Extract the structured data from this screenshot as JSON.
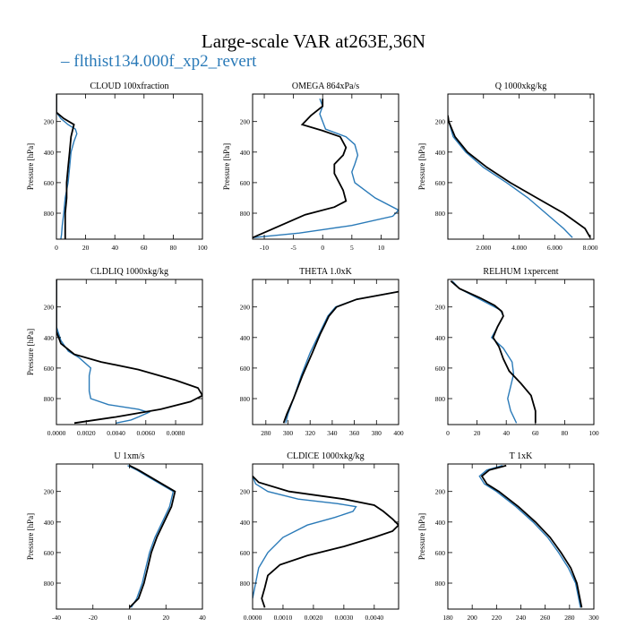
{
  "figure": {
    "title": "Large-scale VAR at263E,36N",
    "legend_label": "flthist134.000f_xp2_revert",
    "legend_color": "#2a7ab8",
    "ref_color": "#000000",
    "ylabel": "Pressure [hPa]"
  },
  "chart_data": [
    {
      "type": "line",
      "title": "CLOUD  100xfraction",
      "ylabel": "Pressure [hPa]",
      "xlim": [
        0,
        100
      ],
      "ylim": [
        970,
        20
      ],
      "xticks": [
        0,
        20,
        40,
        60,
        80,
        100
      ],
      "xticklabels": [
        "0",
        "20",
        "40",
        "60",
        "80",
        "100"
      ],
      "yticks": [
        200,
        400,
        600,
        800
      ],
      "yticklabels": [
        "200",
        "400",
        "600",
        "800"
      ],
      "series": [
        {
          "name": "flthist134.000f_xp2_revert",
          "color": "#2a7ab8",
          "x": [
            0,
            0,
            3,
            8,
            13,
            14,
            12,
            10,
            9,
            8,
            6,
            5,
            4,
            3.5,
            3
          ],
          "y": [
            20,
            140,
            180,
            220,
            250,
            280,
            330,
            400,
            500,
            600,
            700,
            800,
            880,
            940,
            970
          ]
        },
        {
          "name": "",
          "color": "#000000",
          "x": [
            0,
            0,
            5,
            12,
            11,
            10,
            9,
            8,
            7,
            7,
            6,
            6,
            6
          ],
          "y": [
            20,
            140,
            180,
            220,
            260,
            300,
            400,
            500,
            600,
            700,
            800,
            900,
            970
          ]
        }
      ]
    },
    {
      "type": "line",
      "title": "OMEGA  864xPa/s",
      "ylabel": "Pressure [hPa]",
      "xlim": [
        -12,
        13
      ],
      "ylim": [
        970,
        20
      ],
      "xticks": [
        -10,
        -5,
        0,
        5,
        10
      ],
      "xticklabels": [
        "-10",
        "-5",
        "0",
        "5",
        "10"
      ],
      "yticks": [
        200,
        400,
        600,
        800
      ],
      "yticklabels": [
        "200",
        "400",
        "600",
        "800"
      ],
      "series": [
        {
          "name": "flthist134.000f_xp2_revert",
          "color": "#2a7ab8",
          "x": [
            -0.5,
            0,
            -0.5,
            0.5,
            4,
            5.5,
            6,
            5.5,
            5,
            5.5,
            9,
            13,
            12,
            5,
            -4,
            -12
          ],
          "y": [
            50,
            100,
            150,
            250,
            300,
            350,
            420,
            480,
            530,
            600,
            700,
            780,
            820,
            880,
            930,
            960
          ]
        },
        {
          "name": "",
          "color": "#000000",
          "x": [
            0,
            0,
            -2,
            -3.5,
            0,
            3,
            4,
            3.5,
            2,
            2,
            3.5,
            4,
            2,
            -3,
            -9,
            -12
          ],
          "y": [
            50,
            100,
            160,
            220,
            260,
            300,
            370,
            420,
            480,
            540,
            650,
            720,
            760,
            810,
            910,
            960
          ]
        }
      ]
    },
    {
      "type": "line",
      "title": "Q  1000xkg/kg",
      "ylabel": "Pressure [hPa]",
      "xlim": [
        0,
        8.2
      ],
      "ylim": [
        970,
        20
      ],
      "xticks": [
        2,
        4,
        6,
        8
      ],
      "xticklabels": [
        "2.000",
        "4.000",
        "6.000",
        "8.000"
      ],
      "yticks": [
        200,
        400,
        600,
        800
      ],
      "yticklabels": [
        "200",
        "400",
        "600",
        "800"
      ],
      "series": [
        {
          "name": "flthist134.000f_xp2_revert",
          "color": "#2a7ab8",
          "x": [
            0,
            0.05,
            0.3,
            1.0,
            2.0,
            3.3,
            4.5,
            5.5,
            6.5,
            7.0
          ],
          "y": [
            160,
            200,
            300,
            400,
            500,
            600,
            700,
            800,
            900,
            960
          ]
        },
        {
          "name": "",
          "color": "#000000",
          "x": [
            0,
            0.05,
            0.4,
            1.1,
            2.2,
            3.5,
            5.0,
            6.5,
            7.7,
            8.0
          ],
          "y": [
            160,
            200,
            300,
            400,
            500,
            600,
            700,
            800,
            900,
            960
          ]
        }
      ]
    },
    {
      "type": "line",
      "title": "CLDLIQ  1000xkg/kg",
      "ylabel": "Pressure [hPa]",
      "xlim": [
        0,
        0.0098
      ],
      "ylim": [
        970,
        20
      ],
      "xticks": [
        0,
        0.002,
        0.004,
        0.006,
        0.008
      ],
      "xticklabels": [
        "0.0000",
        "0.0020",
        "0.0040",
        "0.0060",
        "0.0080"
      ],
      "yticks": [
        200,
        400,
        600,
        800
      ],
      "yticklabels": [
        "200",
        "400",
        "600",
        "800"
      ],
      "series": [
        {
          "name": "flthist134.000f_xp2_revert",
          "color": "#2a7ab8",
          "x": [
            0,
            0,
            0.0003,
            0.0008,
            0.0015,
            0.0023,
            0.0022,
            0.0022,
            0.0022,
            0.0023,
            0.0035,
            0.0055,
            0.0062,
            0.0055,
            0.005,
            0.004
          ],
          "y": [
            20,
            330,
            420,
            490,
            530,
            600,
            650,
            700,
            750,
            800,
            840,
            870,
            890,
            920,
            940,
            960
          ]
        },
        {
          "name": "",
          "color": "#000000",
          "x": [
            0,
            0,
            0.0003,
            0.0012,
            0.003,
            0.0055,
            0.008,
            0.0095,
            0.0098,
            0.009,
            0.007,
            0.004,
            0.0012
          ],
          "y": [
            20,
            360,
            440,
            510,
            560,
            610,
            680,
            730,
            780,
            820,
            870,
            920,
            960
          ]
        }
      ]
    },
    {
      "type": "line",
      "title": "THETA  1.0xK",
      "ylabel": "",
      "xlim": [
        268,
        400
      ],
      "ylim": [
        970,
        20
      ],
      "xticks": [
        280,
        300,
        320,
        340,
        360,
        380,
        400
      ],
      "xticklabels": [
        "280",
        "300",
        "320",
        "340",
        "360",
        "380",
        "400"
      ],
      "yticks": [
        200,
        400,
        600,
        800
      ],
      "yticklabels": [
        "200",
        "400",
        "600",
        "800"
      ],
      "series": [
        {
          "name": "flthist134.000f_xp2_revert",
          "color": "#2a7ab8",
          "x": [
            298,
            300,
            305,
            312,
            320,
            328,
            332,
            336,
            343,
            362,
            400
          ],
          "y": [
            960,
            900,
            800,
            650,
            500,
            380,
            320,
            260,
            200,
            150,
            100
          ]
        },
        {
          "name": "",
          "color": "#000000",
          "x": [
            296,
            299,
            305,
            313,
            322,
            329,
            333,
            337,
            344,
            362,
            400
          ],
          "y": [
            960,
            900,
            800,
            650,
            500,
            380,
            320,
            260,
            200,
            150,
            100
          ]
        }
      ]
    },
    {
      "type": "line",
      "title": "RELHUM  1xpercent",
      "ylabel": "",
      "xlim": [
        0,
        100
      ],
      "ylim": [
        970,
        20
      ],
      "xticks": [
        0,
        20,
        40,
        60,
        80,
        100
      ],
      "xticklabels": [
        "0",
        "20",
        "40",
        "60",
        "80",
        "100"
      ],
      "yticks": [
        200,
        400,
        600,
        800
      ],
      "yticklabels": [
        "200",
        "400",
        "600",
        "800"
      ],
      "series": [
        {
          "name": "flthist134.000f_xp2_revert",
          "color": "#2a7ab8",
          "x": [
            3,
            8,
            18,
            28,
            36,
            38,
            34,
            30,
            38,
            44,
            45,
            43,
            41,
            43,
            47
          ],
          "y": [
            30,
            80,
            130,
            180,
            220,
            260,
            330,
            400,
            470,
            560,
            640,
            720,
            800,
            880,
            960
          ]
        },
        {
          "name": "",
          "color": "#000000",
          "x": [
            2,
            8,
            22,
            32,
            37,
            38,
            34,
            31,
            35,
            38,
            42,
            50,
            57,
            60,
            60
          ],
          "y": [
            30,
            80,
            140,
            190,
            230,
            260,
            330,
            400,
            460,
            540,
            620,
            700,
            780,
            880,
            960
          ]
        }
      ]
    },
    {
      "type": "line",
      "title": "U  1xm/s",
      "ylabel": "Pressure [hPa]",
      "xlim": [
        -40,
        40
      ],
      "ylim": [
        970,
        20
      ],
      "xticks": [
        -40,
        -20,
        0,
        20,
        40
      ],
      "xticklabels": [
        "-40",
        "-20",
        "0",
        "20",
        "40"
      ],
      "yticks": [
        200,
        400,
        600,
        800
      ],
      "yticklabels": [
        "200",
        "400",
        "600",
        "800"
      ],
      "series": [
        {
          "name": "flthist134.000f_xp2_revert",
          "color": "#2a7ab8",
          "x": [
            -1,
            4,
            14,
            24,
            22,
            18,
            14,
            11,
            9,
            7,
            4,
            1
          ],
          "y": [
            30,
            60,
            130,
            200,
            300,
            400,
            500,
            600,
            700,
            800,
            900,
            960
          ]
        },
        {
          "name": "",
          "color": "#000000",
          "x": [
            0,
            5,
            15,
            25,
            23,
            19,
            15,
            12,
            10,
            8,
            5,
            0
          ],
          "y": [
            30,
            60,
            130,
            200,
            300,
            400,
            500,
            600,
            700,
            800,
            900,
            960
          ]
        }
      ]
    },
    {
      "type": "line",
      "title": "CLDICE  1000xkg/kg",
      "ylabel": "",
      "xlim": [
        0,
        0.0048
      ],
      "ylim": [
        970,
        20
      ],
      "xticks": [
        0,
        0.001,
        0.002,
        0.003,
        0.004
      ],
      "xticklabels": [
        "0.0000",
        "0.0010",
        "0.0020",
        "0.0030",
        "0.0040"
      ],
      "yticks": [
        200,
        400,
        600,
        800
      ],
      "yticklabels": [
        "200",
        "400",
        "600",
        "800"
      ],
      "series": [
        {
          "name": "flthist134.000f_xp2_revert",
          "color": "#2a7ab8",
          "x": [
            0,
            0.0001,
            0.0005,
            0.0015,
            0.0028,
            0.0034,
            0.0033,
            0.0027,
            0.0018,
            0.001,
            0.0005,
            0.0002,
            0.0001,
            0
          ],
          "y": [
            100,
            150,
            200,
            250,
            280,
            300,
            330,
            370,
            420,
            500,
            600,
            700,
            800,
            900
          ]
        },
        {
          "name": "",
          "color": "#000000",
          "x": [
            0,
            0.0002,
            0.0012,
            0.003,
            0.004,
            0.0043,
            0.0046,
            0.0048,
            0.0046,
            0.004,
            0.003,
            0.0018,
            0.0009,
            0.0005,
            0.0004,
            0.0003,
            0.0004
          ],
          "y": [
            100,
            140,
            200,
            250,
            290,
            330,
            380,
            420,
            460,
            500,
            560,
            620,
            680,
            750,
            830,
            900,
            960
          ]
        }
      ]
    },
    {
      "type": "line",
      "title": "T  1xK",
      "ylabel": "Pressure [hPa]",
      "xlim": [
        180,
        300
      ],
      "ylim": [
        970,
        20
      ],
      "xticks": [
        180,
        200,
        220,
        240,
        260,
        280,
        300
      ],
      "xticklabels": [
        "180",
        "200",
        "220",
        "240",
        "260",
        "280",
        "300"
      ],
      "yticks": [
        200,
        400,
        600,
        800
      ],
      "yticklabels": [
        "200",
        "400",
        "600",
        "800"
      ],
      "series": [
        {
          "name": "flthist134.000f_xp2_revert",
          "color": "#2a7ab8",
          "x": [
            225,
            212,
            206,
            210,
            220,
            236,
            250,
            262,
            271,
            279,
            285,
            289
          ],
          "y": [
            30,
            60,
            100,
            150,
            200,
            300,
            400,
            500,
            600,
            700,
            800,
            960
          ]
        },
        {
          "name": "",
          "color": "#000000",
          "x": [
            228,
            214,
            208,
            212,
            222,
            238,
            252,
            264,
            273,
            281,
            286,
            290
          ],
          "y": [
            30,
            60,
            100,
            150,
            200,
            300,
            400,
            500,
            600,
            700,
            800,
            960
          ]
        }
      ]
    }
  ]
}
